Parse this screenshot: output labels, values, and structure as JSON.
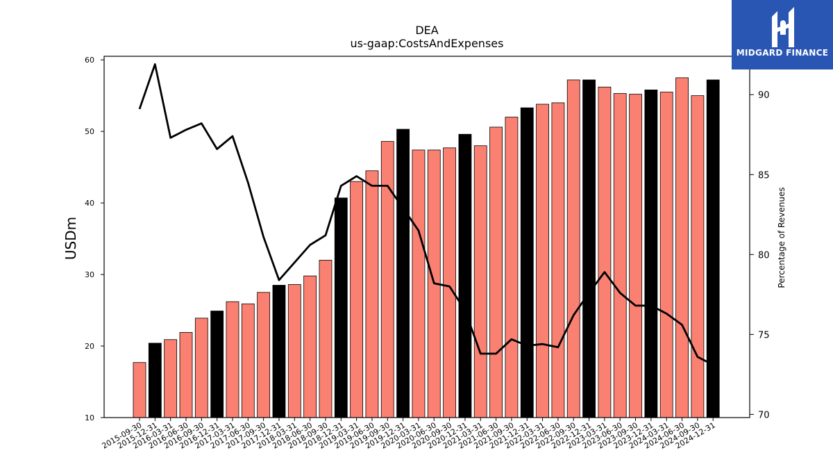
{
  "brand": {
    "name": "MIDGARD FINANCE",
    "bg_color": "#2a56b3"
  },
  "chart_data": {
    "type": "bar",
    "title": "DEA",
    "subtitle": "us-gaap:CostsAndExpenses",
    "ylabel": "USDm",
    "y2label": "Percentage of Revenues",
    "ylim": [
      10,
      60.5
    ],
    "y2lim": [
      69.8,
      92.4
    ],
    "yticks": [
      10,
      20,
      30,
      40,
      50,
      60
    ],
    "y2ticks": [
      70,
      75,
      80,
      85,
      90
    ],
    "bar_color": "#fa8072",
    "highlight_color": "#000000",
    "line_color": "#000000",
    "grid": false,
    "categories": [
      "2015-09-30",
      "2015-12-31",
      "2016-03-31",
      "2016-06-30",
      "2016-09-30",
      "2016-12-31",
      "2017-03-31",
      "2017-06-30",
      "2017-09-30",
      "2017-12-31",
      "2018-03-31",
      "2018-06-30",
      "2018-09-30",
      "2018-12-31",
      "2019-03-31",
      "2019-06-30",
      "2019-09-30",
      "2019-12-31",
      "2020-03-31",
      "2020-06-30",
      "2020-09-30",
      "2020-12-31",
      "2021-03-31",
      "2021-06-30",
      "2021-09-30",
      "2021-12-31",
      "2022-03-31",
      "2022-06-30",
      "2022-09-30",
      "2022-12-31",
      "2023-03-31",
      "2023-06-30",
      "2023-09-30",
      "2023-12-31",
      "2024-03-31",
      "2024-06-30",
      "2024-09-30",
      "2024-12-31"
    ],
    "series": [
      {
        "type": "bar",
        "axis": "left",
        "values": [
          17.7,
          20.4,
          20.9,
          21.9,
          23.9,
          24.9,
          26.2,
          25.9,
          27.5,
          28.5,
          28.6,
          29.8,
          32.0,
          40.7,
          43.0,
          44.5,
          48.6,
          50.3,
          47.4,
          47.4,
          47.7,
          49.6,
          48.0,
          50.6,
          52.0,
          53.3,
          53.8,
          54.0,
          57.2,
          57.2,
          56.2,
          55.3,
          55.2,
          55.8,
          55.5,
          57.5,
          55.0,
          57.2
        ],
        "highlight": [
          false,
          true,
          false,
          false,
          false,
          true,
          false,
          false,
          false,
          true,
          false,
          false,
          false,
          true,
          false,
          false,
          false,
          true,
          false,
          false,
          false,
          true,
          false,
          false,
          false,
          true,
          false,
          false,
          false,
          true,
          false,
          false,
          false,
          true,
          false,
          false,
          false,
          true
        ]
      },
      {
        "type": "line",
        "axis": "right",
        "values": [
          89.1,
          91.9,
          87.3,
          87.8,
          88.2,
          86.6,
          87.4,
          84.5,
          81.1,
          78.4,
          79.5,
          80.6,
          81.2,
          84.3,
          84.9,
          84.3,
          84.3,
          82.9,
          81.5,
          78.2,
          78.0,
          76.5,
          73.8,
          73.8,
          74.7,
          74.3,
          74.4,
          74.2,
          76.2,
          77.6,
          78.9,
          77.6,
          76.8,
          76.8,
          76.3,
          75.6,
          73.6,
          73.1
        ]
      }
    ]
  }
}
